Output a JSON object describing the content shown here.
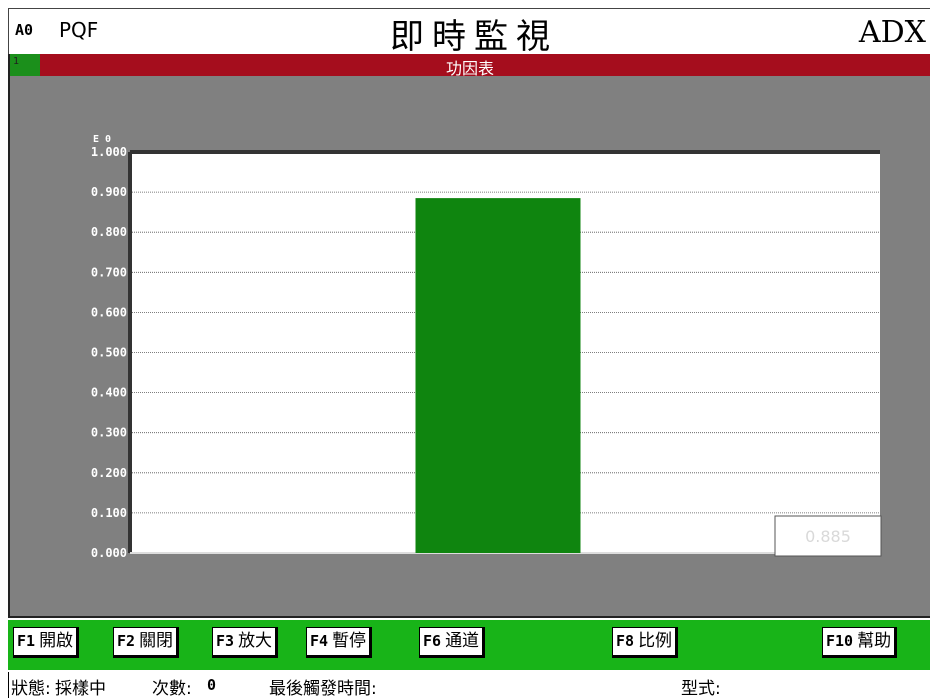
{
  "header": {
    "code": "A0",
    "app": "PQF",
    "title": "即時監視",
    "right_label": "ADX"
  },
  "panel": {
    "channel": "1",
    "title": "功因表",
    "exponent_label": "E 0",
    "value_box": "0.885"
  },
  "chart_data": {
    "type": "bar",
    "categories": [
      ""
    ],
    "values": [
      0.885
    ],
    "ylim": [
      0.0,
      1.0
    ],
    "yticks": [
      "0.000",
      "0.100",
      "0.200",
      "0.300",
      "0.400",
      "0.500",
      "0.600",
      "0.700",
      "0.800",
      "0.900",
      "1.000"
    ],
    "grid": true,
    "bar_color": "#0f850f",
    "plot_background": "#ffffff",
    "panel_background": "#808080"
  },
  "function_keys": [
    {
      "key": "F1",
      "label": "開啟"
    },
    {
      "key": "F2",
      "label": "關閉"
    },
    {
      "key": "F3",
      "label": "放大"
    },
    {
      "key": "F4",
      "label": "暫停"
    },
    {
      "key": "F6",
      "label": "通道"
    },
    {
      "key": "F8",
      "label": "比例"
    },
    {
      "key": "F10",
      "label": "幫助"
    }
  ],
  "status": {
    "state_label": "狀態:",
    "state_value": "採樣中",
    "count_label": "次數:",
    "count_value": "0",
    "last_trigger_label": "最後觸發時間:",
    "type_label": "型式:"
  },
  "colors": {
    "header_red": "#a50d1d",
    "fkey_bar_green": "#18b418",
    "badge_green": "#1b8f1b"
  }
}
